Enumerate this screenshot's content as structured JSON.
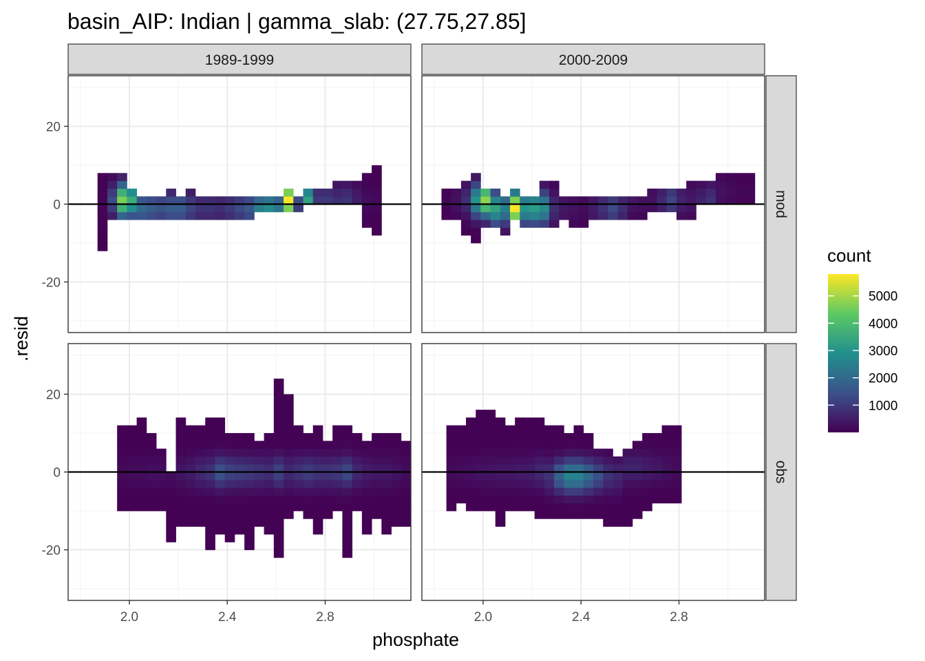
{
  "chart_data": {
    "type": "heatmap",
    "title": "basin_AIP: Indian | gamma_slab: (27.75,27.85]",
    "xlabel": "phosphate",
    "ylabel": ".resid",
    "x_ticks": [
      "2.0",
      "2.4",
      "2.8"
    ],
    "x_tick_values": [
      2.0,
      2.4,
      2.8
    ],
    "y_ticks": [
      "-20",
      "0",
      "20"
    ],
    "y_tick_values": [
      -20,
      0,
      20
    ],
    "xlim": [
      1.75,
      3.15
    ],
    "ylim": [
      -33,
      33
    ],
    "bin": {
      "x_width": 0.04,
      "y_height": 2
    },
    "grid": true,
    "reference_line_y": 0,
    "legend": {
      "title": "count",
      "position": "right",
      "ticks": [
        "1000",
        "2000",
        "3000",
        "4000",
        "5000"
      ],
      "tick_values": [
        1000,
        2000,
        3000,
        4000,
        5000
      ],
      "range": [
        0,
        5800
      ]
    },
    "colors": {
      "low": "#440154",
      "mid1": "#3b528b",
      "mid2": "#21908d",
      "mid3": "#5dc963",
      "high": "#fde725",
      "strip_fill": "#d9d9d9",
      "zero_line": "#000000"
    },
    "facet_columns": [
      "1989-1999",
      "2000-2009"
    ],
    "facet_rows": [
      "mod",
      "obs"
    ],
    "panels": [
      {
        "column": "1989-1999",
        "row": "mod",
        "columns": [
          {
            "x": 1.89,
            "ymin": -12,
            "ymax": 9,
            "peak_y": 0,
            "peak": 80
          },
          {
            "x": 1.93,
            "ymin": -4,
            "ymax": 9,
            "peak_y": 1,
            "peak": 1300
          },
          {
            "x": 1.97,
            "ymin": -4,
            "ymax": 9,
            "peak_y": 1,
            "peak": 4600
          },
          {
            "x": 2.01,
            "ymin": -4,
            "ymax": 5,
            "peak_y": 1,
            "peak": 3600
          },
          {
            "x": 2.05,
            "ymin": -4,
            "ymax": 3,
            "peak_y": -1,
            "peak": 2000
          },
          {
            "x": 2.09,
            "ymin": -4,
            "ymax": 3,
            "peak_y": -1,
            "peak": 1700
          },
          {
            "x": 2.13,
            "ymin": -4,
            "ymax": 3,
            "peak_y": -1,
            "peak": 1500
          },
          {
            "x": 2.17,
            "ymin": -4,
            "ymax": 5,
            "peak_y": -1,
            "peak": 1700
          },
          {
            "x": 2.21,
            "ymin": -4,
            "ymax": 3,
            "peak_y": -1,
            "peak": 1700
          },
          {
            "x": 2.25,
            "ymin": -4,
            "ymax": 5,
            "peak_y": -1,
            "peak": 1200
          },
          {
            "x": 2.29,
            "ymin": -4,
            "ymax": 3,
            "peak_y": -1,
            "peak": 900
          },
          {
            "x": 2.33,
            "ymin": -4,
            "ymax": 3,
            "peak_y": -1,
            "peak": 900
          },
          {
            "x": 2.37,
            "ymin": -4,
            "ymax": 3,
            "peak_y": -1,
            "peak": 800
          },
          {
            "x": 2.41,
            "ymin": -4,
            "ymax": 3,
            "peak_y": -1,
            "peak": 1000
          },
          {
            "x": 2.45,
            "ymin": -4,
            "ymax": 3,
            "peak_y": -1,
            "peak": 1300
          },
          {
            "x": 2.49,
            "ymin": -4,
            "ymax": 3,
            "peak_y": -1,
            "peak": 1600
          },
          {
            "x": 2.53,
            "ymin": -2,
            "ymax": 3,
            "peak_y": -1,
            "peak": 2500
          },
          {
            "x": 2.57,
            "ymin": -2,
            "ymax": 3,
            "peak_y": -1,
            "peak": 2800
          },
          {
            "x": 2.61,
            "ymin": -2,
            "ymax": 3,
            "peak_y": -1,
            "peak": 2300
          },
          {
            "x": 2.65,
            "ymin": -2,
            "ymax": 5,
            "peak_y": 1,
            "peak": 5800
          },
          {
            "x": 2.69,
            "ymin": -2,
            "ymax": 3,
            "peak_y": 1,
            "peak": 1300
          },
          {
            "x": 2.73,
            "ymin": 0,
            "ymax": 5,
            "peak_y": 1,
            "peak": 3300
          },
          {
            "x": 2.77,
            "ymin": 0,
            "ymax": 5,
            "peak_y": 1,
            "peak": 1000
          },
          {
            "x": 2.81,
            "ymin": 0,
            "ymax": 5,
            "peak_y": 1,
            "peak": 1000
          },
          {
            "x": 2.85,
            "ymin": 0,
            "ymax": 7,
            "peak_y": 1,
            "peak": 800
          },
          {
            "x": 2.89,
            "ymin": 0,
            "ymax": 7,
            "peak_y": 1,
            "peak": 900
          },
          {
            "x": 2.93,
            "ymin": 0,
            "ymax": 7,
            "peak_y": 1,
            "peak": 500
          },
          {
            "x": 2.97,
            "ymin": -6,
            "ymax": 9,
            "peak_y": 1,
            "peak": 200
          },
          {
            "x": 3.01,
            "ymin": -8,
            "ymax": 11,
            "peak_y": 1,
            "peak": 150
          }
        ]
      },
      {
        "column": "2000-2009",
        "row": "mod",
        "columns": [
          {
            "x": 1.85,
            "ymin": -4,
            "ymax": 5,
            "peak_y": 1,
            "peak": 100
          },
          {
            "x": 1.89,
            "ymin": -4,
            "ymax": 5,
            "peak_y": 1,
            "peak": 300
          },
          {
            "x": 1.93,
            "ymin": -8,
            "ymax": 7,
            "peak_y": 1,
            "peak": 800
          },
          {
            "x": 1.97,
            "ymin": -10,
            "ymax": 9,
            "peak_y": 1,
            "peak": 3000
          },
          {
            "x": 2.01,
            "ymin": -6,
            "ymax": 5,
            "peak_y": 1,
            "peak": 4800
          },
          {
            "x": 2.05,
            "ymin": -6,
            "ymax": 5,
            "peak_y": -1,
            "peak": 3300
          },
          {
            "x": 2.09,
            "ymin": -8,
            "ymax": 3,
            "peak_y": -1,
            "peak": 2500
          },
          {
            "x": 2.13,
            "ymin": -4,
            "ymax": 5,
            "peak_y": -1,
            "peak": 5800
          },
          {
            "x": 2.17,
            "ymin": -6,
            "ymax": 3,
            "peak_y": -1,
            "peak": 3000
          },
          {
            "x": 2.21,
            "ymin": -6,
            "ymax": 3,
            "peak_y": -1,
            "peak": 3200
          },
          {
            "x": 2.25,
            "ymin": -6,
            "ymax": 7,
            "peak_y": -1,
            "peak": 2800
          },
          {
            "x": 2.29,
            "ymin": -6,
            "ymax": 7,
            "peak_y": -1,
            "peak": 800
          },
          {
            "x": 2.33,
            "ymin": -4,
            "ymax": 3,
            "peak_y": -1,
            "peak": 400
          },
          {
            "x": 2.37,
            "ymin": -6,
            "ymax": 3,
            "peak_y": -1,
            "peak": 300
          },
          {
            "x": 2.41,
            "ymin": -6,
            "ymax": 3,
            "peak_y": -1,
            "peak": 200
          },
          {
            "x": 2.45,
            "ymin": -4,
            "ymax": 3,
            "peak_y": -1,
            "peak": 500
          },
          {
            "x": 2.49,
            "ymin": -4,
            "ymax": 3,
            "peak_y": -1,
            "peak": 900
          },
          {
            "x": 2.53,
            "ymin": -4,
            "ymax": 3,
            "peak_y": -1,
            "peak": 1300
          },
          {
            "x": 2.57,
            "ymin": -4,
            "ymax": 3,
            "peak_y": -1,
            "peak": 800
          },
          {
            "x": 2.61,
            "ymin": -4,
            "ymax": 3,
            "peak_y": 1,
            "peak": 400
          },
          {
            "x": 2.65,
            "ymin": -4,
            "ymax": 3,
            "peak_y": 1,
            "peak": 300
          },
          {
            "x": 2.69,
            "ymin": -2,
            "ymax": 5,
            "peak_y": 1,
            "peak": 300
          },
          {
            "x": 2.73,
            "ymin": -2,
            "ymax": 5,
            "peak_y": 1,
            "peak": 700
          },
          {
            "x": 2.77,
            "ymin": -2,
            "ymax": 5,
            "peak_y": 1,
            "peak": 1200
          },
          {
            "x": 2.81,
            "ymin": -4,
            "ymax": 5,
            "peak_y": 1,
            "peak": 600
          },
          {
            "x": 2.85,
            "ymin": -4,
            "ymax": 7,
            "peak_y": 1,
            "peak": 400
          },
          {
            "x": 2.89,
            "ymin": 0,
            "ymax": 7,
            "peak_y": 1,
            "peak": 600
          },
          {
            "x": 2.93,
            "ymin": 0,
            "ymax": 7,
            "peak_y": 1,
            "peak": 900
          },
          {
            "x": 2.97,
            "ymin": 0,
            "ymax": 9,
            "peak_y": 3,
            "peak": 300
          },
          {
            "x": 3.01,
            "ymin": 0,
            "ymax": 9,
            "peak_y": 3,
            "peak": 200
          },
          {
            "x": 3.05,
            "ymin": 0,
            "ymax": 9,
            "peak_y": 3,
            "peak": 100
          },
          {
            "x": 3.09,
            "ymin": 0,
            "ymax": 9,
            "peak_y": 3,
            "peak": 100
          }
        ]
      },
      {
        "column": "1989-1999",
        "row": "obs",
        "columns": [
          {
            "x": 1.97,
            "ymin": -10,
            "ymax": 13,
            "peak_y": 0,
            "peak": 150
          },
          {
            "x": 2.01,
            "ymin": -10,
            "ymax": 13,
            "peak_y": 0,
            "peak": 200
          },
          {
            "x": 2.05,
            "ymin": -10,
            "ymax": 15,
            "peak_y": 0,
            "peak": 200
          },
          {
            "x": 2.09,
            "ymin": -10,
            "ymax": 11,
            "peak_y": 0,
            "peak": 250
          },
          {
            "x": 2.13,
            "ymin": -10,
            "ymax": 7,
            "peak_y": 0,
            "peak": 250
          },
          {
            "x": 2.17,
            "ymin": -18,
            "ymax": 1,
            "peak_y": 0,
            "peak": 200
          },
          {
            "x": 2.21,
            "ymin": -14,
            "ymax": 15,
            "peak_y": 0,
            "peak": 350
          },
          {
            "x": 2.25,
            "ymin": -14,
            "ymax": 13,
            "peak_y": 0,
            "peak": 500
          },
          {
            "x": 2.29,
            "ymin": -14,
            "ymax": 13,
            "peak_y": 0,
            "peak": 700
          },
          {
            "x": 2.33,
            "ymin": -20,
            "ymax": 15,
            "peak_y": 0,
            "peak": 900
          },
          {
            "x": 2.37,
            "ymin": -16,
            "ymax": 15,
            "peak_y": 0,
            "peak": 1500
          },
          {
            "x": 2.41,
            "ymin": -18,
            "ymax": 11,
            "peak_y": 0,
            "peak": 1200
          },
          {
            "x": 2.45,
            "ymin": -16,
            "ymax": 11,
            "peak_y": 0,
            "peak": 1100
          },
          {
            "x": 2.49,
            "ymin": -20,
            "ymax": 11,
            "peak_y": 0,
            "peak": 1000
          },
          {
            "x": 2.53,
            "ymin": -14,
            "ymax": 9,
            "peak_y": 0,
            "peak": 900
          },
          {
            "x": 2.57,
            "ymin": -16,
            "ymax": 11,
            "peak_y": 0,
            "peak": 800
          },
          {
            "x": 2.61,
            "ymin": -22,
            "ymax": 25,
            "peak_y": 0,
            "peak": 1200
          },
          {
            "x": 2.65,
            "ymin": -12,
            "ymax": 21,
            "peak_y": 0,
            "peak": 700
          },
          {
            "x": 2.69,
            "ymin": -10,
            "ymax": 13,
            "peak_y": 0,
            "peak": 900
          },
          {
            "x": 2.73,
            "ymin": -12,
            "ymax": 11,
            "peak_y": 0,
            "peak": 1100
          },
          {
            "x": 2.77,
            "ymin": -16,
            "ymax": 13,
            "peak_y": 0,
            "peak": 900
          },
          {
            "x": 2.81,
            "ymin": -12,
            "ymax": 9,
            "peak_y": 0,
            "peak": 900
          },
          {
            "x": 2.85,
            "ymin": -10,
            "ymax": 13,
            "peak_y": 0,
            "peak": 1000
          },
          {
            "x": 2.89,
            "ymin": -22,
            "ymax": 13,
            "peak_y": 0,
            "peak": 1300
          },
          {
            "x": 2.93,
            "ymin": -10,
            "ymax": 11,
            "peak_y": 0,
            "peak": 700
          },
          {
            "x": 2.97,
            "ymin": -16,
            "ymax": 9,
            "peak_y": 0,
            "peak": 500
          },
          {
            "x": 3.01,
            "ymin": -12,
            "ymax": 11,
            "peak_y": 0,
            "peak": 400
          },
          {
            "x": 3.05,
            "ymin": -16,
            "ymax": 11,
            "peak_y": 0,
            "peak": 400
          },
          {
            "x": 3.09,
            "ymin": -14,
            "ymax": 11,
            "peak_y": 0,
            "peak": 300
          },
          {
            "x": 3.13,
            "ymin": -14,
            "ymax": 9,
            "peak_y": 0,
            "peak": 200
          }
        ]
      },
      {
        "column": "2000-2009",
        "row": "obs",
        "columns": [
          {
            "x": 1.87,
            "ymin": -10,
            "ymax": 13,
            "peak_y": 0,
            "peak": 150
          },
          {
            "x": 1.91,
            "ymin": -8,
            "ymax": 13,
            "peak_y": 0,
            "peak": 200
          },
          {
            "x": 1.95,
            "ymin": -10,
            "ymax": 15,
            "peak_y": 0,
            "peak": 250
          },
          {
            "x": 1.99,
            "ymin": -10,
            "ymax": 17,
            "peak_y": 0,
            "peak": 300
          },
          {
            "x": 2.03,
            "ymin": -10,
            "ymax": 17,
            "peak_y": 0,
            "peak": 350
          },
          {
            "x": 2.07,
            "ymin": -14,
            "ymax": 15,
            "peak_y": 0,
            "peak": 400
          },
          {
            "x": 2.11,
            "ymin": -10,
            "ymax": 13,
            "peak_y": 0,
            "peak": 400
          },
          {
            "x": 2.15,
            "ymin": -10,
            "ymax": 15,
            "peak_y": 0,
            "peak": 450
          },
          {
            "x": 2.19,
            "ymin": -10,
            "ymax": 15,
            "peak_y": 0,
            "peak": 500
          },
          {
            "x": 2.23,
            "ymin": -12,
            "ymax": 15,
            "peak_y": 0,
            "peak": 700
          },
          {
            "x": 2.27,
            "ymin": -12,
            "ymax": 13,
            "peak_y": -1,
            "peak": 900
          },
          {
            "x": 2.31,
            "ymin": -12,
            "ymax": 13,
            "peak_y": -1,
            "peak": 1800
          },
          {
            "x": 2.35,
            "ymin": -12,
            "ymax": 11,
            "peak_y": -1,
            "peak": 2600
          },
          {
            "x": 2.39,
            "ymin": -12,
            "ymax": 13,
            "peak_y": -1,
            "peak": 2600
          },
          {
            "x": 2.43,
            "ymin": -12,
            "ymax": 11,
            "peak_y": -1,
            "peak": 2000
          },
          {
            "x": 2.47,
            "ymin": -12,
            "ymax": 7,
            "peak_y": -1,
            "peak": 1400
          },
          {
            "x": 2.51,
            "ymin": -14,
            "ymax": 7,
            "peak_y": -1,
            "peak": 900
          },
          {
            "x": 2.55,
            "ymin": -14,
            "ymax": 5,
            "peak_y": -1,
            "peak": 700
          },
          {
            "x": 2.59,
            "ymin": -14,
            "ymax": 7,
            "peak_y": 1,
            "peak": 600
          },
          {
            "x": 2.63,
            "ymin": -12,
            "ymax": 9,
            "peak_y": 1,
            "peak": 600
          },
          {
            "x": 2.67,
            "ymin": -10,
            "ymax": 11,
            "peak_y": 1,
            "peak": 500
          },
          {
            "x": 2.71,
            "ymin": -8,
            "ymax": 11,
            "peak_y": 1,
            "peak": 400
          },
          {
            "x": 2.75,
            "ymin": -8,
            "ymax": 13,
            "peak_y": 1,
            "peak": 300
          },
          {
            "x": 2.79,
            "ymin": -8,
            "ymax": 13,
            "peak_y": 1,
            "peak": 200
          }
        ]
      }
    ]
  }
}
